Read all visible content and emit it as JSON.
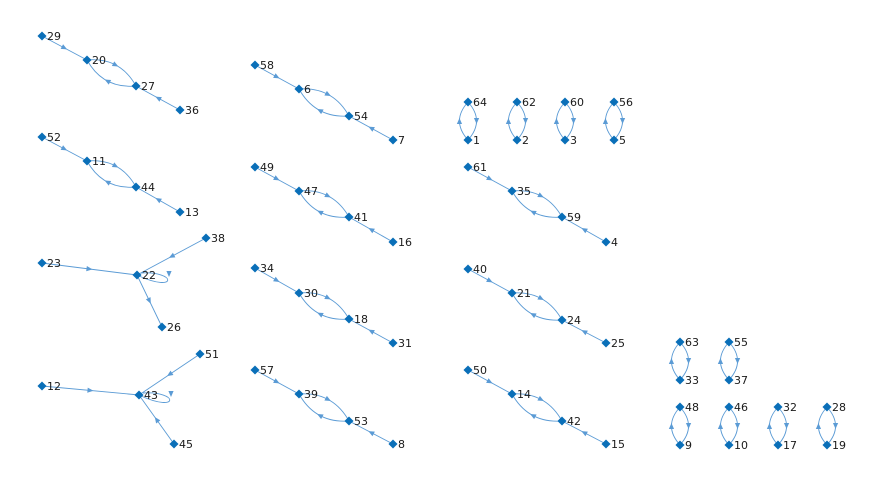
{
  "colors": {
    "edge": "#5b9bd5",
    "node": "#0a6fb8",
    "label": "#1a1a1a"
  },
  "nodes": [
    {
      "id": "29"
    },
    {
      "id": "20"
    },
    {
      "id": "27"
    },
    {
      "id": "36"
    },
    {
      "id": "52"
    },
    {
      "id": "11"
    },
    {
      "id": "44"
    },
    {
      "id": "13"
    },
    {
      "id": "23"
    },
    {
      "id": "22"
    },
    {
      "id": "38"
    },
    {
      "id": "26"
    },
    {
      "id": "12"
    },
    {
      "id": "43"
    },
    {
      "id": "51"
    },
    {
      "id": "45"
    },
    {
      "id": "58"
    },
    {
      "id": "6"
    },
    {
      "id": "54"
    },
    {
      "id": "7"
    },
    {
      "id": "49"
    },
    {
      "id": "47"
    },
    {
      "id": "41"
    },
    {
      "id": "16"
    },
    {
      "id": "34"
    },
    {
      "id": "30"
    },
    {
      "id": "18"
    },
    {
      "id": "31"
    },
    {
      "id": "57"
    },
    {
      "id": "39"
    },
    {
      "id": "53"
    },
    {
      "id": "8"
    },
    {
      "id": "64"
    },
    {
      "id": "1"
    },
    {
      "id": "62"
    },
    {
      "id": "2"
    },
    {
      "id": "60"
    },
    {
      "id": "3"
    },
    {
      "id": "56"
    },
    {
      "id": "5"
    },
    {
      "id": "61"
    },
    {
      "id": "35"
    },
    {
      "id": "59"
    },
    {
      "id": "4"
    },
    {
      "id": "40"
    },
    {
      "id": "21"
    },
    {
      "id": "24"
    },
    {
      "id": "25"
    },
    {
      "id": "50"
    },
    {
      "id": "14"
    },
    {
      "id": "42"
    },
    {
      "id": "15"
    },
    {
      "id": "63"
    },
    {
      "id": "33"
    },
    {
      "id": "55"
    },
    {
      "id": "37"
    },
    {
      "id": "48"
    },
    {
      "id": "9"
    },
    {
      "id": "46"
    },
    {
      "id": "10"
    },
    {
      "id": "32"
    },
    {
      "id": "17"
    },
    {
      "id": "28"
    },
    {
      "id": "19"
    }
  ],
  "edges": [
    {
      "from": "29",
      "to": "20"
    },
    {
      "from": "20",
      "to": "27"
    },
    {
      "from": "27",
      "to": "20"
    },
    {
      "from": "36",
      "to": "27"
    },
    {
      "from": "52",
      "to": "11"
    },
    {
      "from": "11",
      "to": "44"
    },
    {
      "from": "44",
      "to": "11"
    },
    {
      "from": "13",
      "to": "44"
    },
    {
      "from": "23",
      "to": "22"
    },
    {
      "from": "38",
      "to": "22"
    },
    {
      "from": "22",
      "to": "26"
    },
    {
      "from": "22",
      "to": "22"
    },
    {
      "from": "12",
      "to": "43"
    },
    {
      "from": "51",
      "to": "43"
    },
    {
      "from": "45",
      "to": "43"
    },
    {
      "from": "43",
      "to": "43"
    },
    {
      "from": "58",
      "to": "6"
    },
    {
      "from": "6",
      "to": "54"
    },
    {
      "from": "54",
      "to": "6"
    },
    {
      "from": "7",
      "to": "54"
    },
    {
      "from": "49",
      "to": "47"
    },
    {
      "from": "47",
      "to": "41"
    },
    {
      "from": "41",
      "to": "47"
    },
    {
      "from": "16",
      "to": "41"
    },
    {
      "from": "34",
      "to": "30"
    },
    {
      "from": "30",
      "to": "18"
    },
    {
      "from": "18",
      "to": "30"
    },
    {
      "from": "31",
      "to": "18"
    },
    {
      "from": "57",
      "to": "39"
    },
    {
      "from": "39",
      "to": "53"
    },
    {
      "from": "53",
      "to": "39"
    },
    {
      "from": "8",
      "to": "53"
    },
    {
      "from": "64",
      "to": "1"
    },
    {
      "from": "1",
      "to": "64"
    },
    {
      "from": "62",
      "to": "2"
    },
    {
      "from": "2",
      "to": "62"
    },
    {
      "from": "60",
      "to": "3"
    },
    {
      "from": "3",
      "to": "60"
    },
    {
      "from": "56",
      "to": "5"
    },
    {
      "from": "5",
      "to": "56"
    },
    {
      "from": "61",
      "to": "35"
    },
    {
      "from": "35",
      "to": "59"
    },
    {
      "from": "59",
      "to": "35"
    },
    {
      "from": "4",
      "to": "59"
    },
    {
      "from": "40",
      "to": "21"
    },
    {
      "from": "21",
      "to": "24"
    },
    {
      "from": "24",
      "to": "21"
    },
    {
      "from": "25",
      "to": "24"
    },
    {
      "from": "50",
      "to": "14"
    },
    {
      "from": "14",
      "to": "42"
    },
    {
      "from": "42",
      "to": "14"
    },
    {
      "from": "15",
      "to": "42"
    },
    {
      "from": "63",
      "to": "33"
    },
    {
      "from": "33",
      "to": "63"
    },
    {
      "from": "55",
      "to": "37"
    },
    {
      "from": "37",
      "to": "55"
    },
    {
      "from": "48",
      "to": "9"
    },
    {
      "from": "9",
      "to": "48"
    },
    {
      "from": "46",
      "to": "10"
    },
    {
      "from": "10",
      "to": "46"
    },
    {
      "from": "32",
      "to": "17"
    },
    {
      "from": "17",
      "to": "32"
    },
    {
      "from": "28",
      "to": "19"
    },
    {
      "from": "19",
      "to": "28"
    }
  ]
}
